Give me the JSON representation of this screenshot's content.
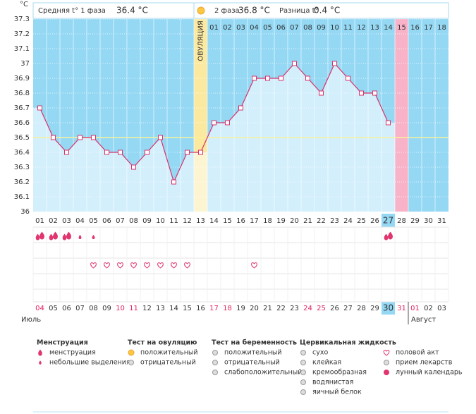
{
  "chart_data": {
    "type": "line",
    "y_unit": "°C",
    "phase1_label": "Средняя t° 1 фаза",
    "phase1_avg": "36.4 °C",
    "phase2_label": "2 фаза",
    "phase2_avg": "36.8 °C",
    "diff_label": "Разница t°",
    "diff_value": "0.4 °C",
    "ovulation_label": "ОВУЛЯЦИЯ",
    "categories": [
      "01",
      "02",
      "03",
      "04",
      "05",
      "06",
      "07",
      "08",
      "09",
      "10",
      "11",
      "12",
      "13",
      "14",
      "15",
      "16",
      "17",
      "18",
      "19",
      "20",
      "21",
      "22",
      "23",
      "24",
      "25",
      "26",
      "27",
      "28",
      "29",
      "30",
      "31"
    ],
    "dates": [
      "04",
      "05",
      "06",
      "07",
      "08",
      "09",
      "10",
      "11",
      "12",
      "13",
      "14",
      "15",
      "16",
      "17",
      "18",
      "19",
      "20",
      "21",
      "22",
      "23",
      "24",
      "25",
      "26",
      "27",
      "28",
      "29",
      "30",
      "31",
      "01",
      "02",
      "03"
    ],
    "weekends": [
      true,
      false,
      false,
      false,
      false,
      false,
      true,
      true,
      false,
      false,
      false,
      false,
      false,
      true,
      true,
      false,
      false,
      false,
      false,
      false,
      true,
      true,
      false,
      false,
      false,
      false,
      false,
      true,
      true,
      false,
      false
    ],
    "months": [
      "Июль",
      "Август"
    ],
    "phase2_days": [
      "01",
      "02",
      "03",
      "04",
      "05",
      "06",
      "07",
      "08",
      "09",
      "10",
      "11",
      "12",
      "13",
      "14",
      "15",
      "16",
      "17",
      "18"
    ],
    "series": [
      {
        "name": "Температура",
        "color": "#d8336b",
        "values": [
          36.7,
          36.5,
          36.4,
          36.5,
          36.5,
          36.4,
          36.4,
          36.3,
          36.4,
          36.5,
          36.2,
          36.4,
          36.4,
          36.6,
          36.6,
          36.7,
          36.9,
          36.9,
          36.9,
          37.0,
          36.9,
          36.8,
          37.0,
          36.9,
          36.8,
          36.8,
          36.6,
          null,
          null,
          null,
          null
        ]
      }
    ],
    "coverline": 36.5,
    "ovulation_day": 13,
    "phase2_start_day": 14,
    "expected_period_day": 28,
    "today_day": 27,
    "month_break_day": 29,
    "flow": [
      "heavy",
      "heavy",
      "heavy",
      "light",
      "light",
      null,
      null,
      null,
      null,
      null,
      null,
      null,
      null,
      null,
      null,
      null,
      null,
      null,
      null,
      null,
      null,
      null,
      null,
      null,
      null,
      null,
      "heavy",
      null,
      null,
      null,
      null
    ],
    "intercourse_days": [
      5,
      6,
      7,
      8,
      9,
      10,
      11,
      12,
      17
    ],
    "ylim": [
      36,
      37.3
    ],
    "yticks": [
      36,
      36.1,
      36.2,
      36.3,
      36.4,
      36.5,
      36.6,
      36.7,
      36.8,
      36.9,
      37,
      37.1,
      37.2,
      37.3
    ],
    "grid": true,
    "legend": [
      {
        "title": "Менструация",
        "items": [
          "менструация",
          "небольшие выделения"
        ]
      },
      {
        "title": "Тест на овуляцию",
        "items": [
          "положительный",
          "отрицательный"
        ]
      },
      {
        "title": "Тест на беременность",
        "items": [
          "положительный",
          "отрицательный",
          "слабоположительный"
        ]
      },
      {
        "title": "Цервикальная жидкость",
        "items": [
          "сухо",
          "клейкая",
          "кремообразная",
          "водянистая",
          "яичный белок"
        ]
      },
      {
        "items": [
          "половой акт",
          "прием лекарств",
          "лунный календарь"
        ]
      }
    ]
  }
}
